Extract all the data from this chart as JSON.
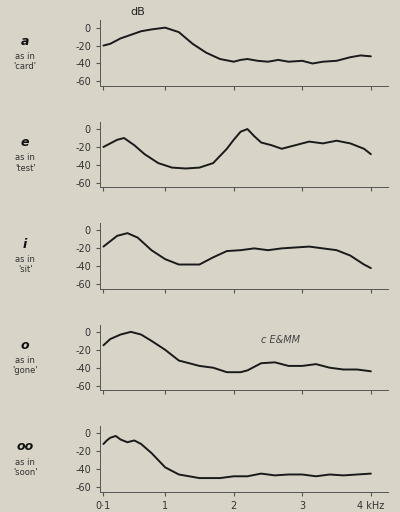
{
  "background_color": "#d8d4c8",
  "line_color": "#1a1a1a",
  "panels": [
    {
      "label": "a",
      "sublabel": "as in\n'card'",
      "show_db_label": true,
      "x": [
        0.1,
        0.2,
        0.35,
        0.5,
        0.65,
        0.8,
        1.0,
        1.2,
        1.4,
        1.6,
        1.8,
        2.0,
        2.1,
        2.2,
        2.35,
        2.5,
        2.65,
        2.8,
        3.0,
        3.15,
        3.3,
        3.5,
        3.7,
        3.85,
        4.0
      ],
      "y": [
        -20,
        -18,
        -12,
        -8,
        -4,
        -2,
        0,
        -5,
        -18,
        -28,
        -35,
        -38,
        -36,
        -35,
        -37,
        -38,
        -36,
        -38,
        -37,
        -40,
        -38,
        -37,
        -33,
        -31,
        -32
      ],
      "annotation": ""
    },
    {
      "label": "e",
      "sublabel": "as in\n'test'",
      "show_db_label": false,
      "x": [
        0.1,
        0.2,
        0.3,
        0.4,
        0.55,
        0.7,
        0.9,
        1.1,
        1.3,
        1.5,
        1.7,
        1.9,
        2.0,
        2.1,
        2.2,
        2.3,
        2.4,
        2.55,
        2.7,
        2.9,
        3.1,
        3.3,
        3.5,
        3.7,
        3.9,
        4.0
      ],
      "y": [
        -20,
        -16,
        -12,
        -10,
        -18,
        -28,
        -38,
        -43,
        -44,
        -43,
        -38,
        -22,
        -12,
        -3,
        0,
        -8,
        -15,
        -18,
        -22,
        -18,
        -14,
        -16,
        -13,
        -16,
        -22,
        -28
      ],
      "annotation": ""
    },
    {
      "label": "i",
      "sublabel": "as in\n'sit'",
      "show_db_label": false,
      "x": [
        0.1,
        0.2,
        0.3,
        0.45,
        0.6,
        0.8,
        1.0,
        1.2,
        1.5,
        1.7,
        1.9,
        2.1,
        2.3,
        2.5,
        2.7,
        2.9,
        3.1,
        3.3,
        3.5,
        3.7,
        3.9,
        4.0
      ],
      "y": [
        -18,
        -12,
        -6,
        -3,
        -8,
        -22,
        -32,
        -38,
        -38,
        -30,
        -23,
        -22,
        -20,
        -22,
        -20,
        -19,
        -18,
        -20,
        -22,
        -28,
        -38,
        -42
      ],
      "annotation": ""
    },
    {
      "label": "o",
      "sublabel": "as in\n'gone'",
      "show_db_label": false,
      "x": [
        0.1,
        0.2,
        0.35,
        0.5,
        0.65,
        0.8,
        1.0,
        1.2,
        1.5,
        1.7,
        1.9,
        2.1,
        2.2,
        2.4,
        2.6,
        2.8,
        3.0,
        3.2,
        3.4,
        3.6,
        3.8,
        4.0
      ],
      "y": [
        -15,
        -8,
        -3,
        0,
        -3,
        -10,
        -20,
        -32,
        -38,
        -40,
        -45,
        -45,
        -43,
        -35,
        -34,
        -38,
        -38,
        -36,
        -40,
        -42,
        -42,
        -44
      ],
      "annotation": "c E&MM"
    },
    {
      "label": "oo",
      "sublabel": "as in\n'soon'",
      "show_db_label": false,
      "x": [
        0.1,
        0.15,
        0.2,
        0.28,
        0.35,
        0.45,
        0.55,
        0.65,
        0.8,
        1.0,
        1.2,
        1.5,
        1.8,
        2.0,
        2.2,
        2.4,
        2.6,
        2.8,
        3.0,
        3.2,
        3.4,
        3.6,
        3.8,
        4.0
      ],
      "y": [
        -12,
        -8,
        -5,
        -3,
        -7,
        -10,
        -8,
        -12,
        -22,
        -38,
        -46,
        -50,
        -50,
        -48,
        -48,
        -45,
        -47,
        -46,
        -46,
        -48,
        -46,
        -47,
        -46,
        -45
      ],
      "annotation": ""
    }
  ],
  "yticks": [
    0,
    -20,
    -40,
    -60
  ],
  "xtick_labels": [
    "0·1",
    "1",
    "2",
    "3",
    "4 kHz"
  ],
  "xtick_positions": [
    0.1,
    1.0,
    2.0,
    3.0,
    4.0
  ],
  "xlim": [
    0.05,
    4.25
  ],
  "ylim": [
    -65,
    8
  ],
  "linewidth": 1.4
}
